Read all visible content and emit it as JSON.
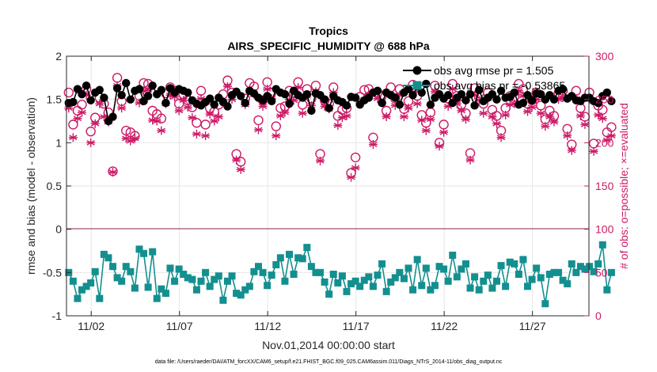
{
  "chart_data": {
    "type": "line",
    "title": "Tropics",
    "subtitle": "AIRS_SPECIFIC_HUMIDITY @ 688 hPa",
    "xlabel": "Nov.01,2014 00:00:00 start",
    "ylabel": "rmse and bias (model - observation)",
    "y2label": "# of obs: o=possible; ×=evaluated",
    "xlim": [
      0.6,
      30.2
    ],
    "ylim": [
      -1,
      2
    ],
    "y2lim": [
      0,
      300
    ],
    "x_ticks": [
      2,
      7,
      12,
      17,
      22,
      27
    ],
    "x_tick_labels": [
      "11/02",
      "11/07",
      "11/12",
      "11/17",
      "11/22",
      "11/27"
    ],
    "y_ticks": [
      -1,
      -0.5,
      0,
      0.5,
      1,
      1.5,
      2
    ],
    "y_tick_labels": [
      "-1",
      "-0.5",
      "0",
      "0.5",
      "1",
      "1.5",
      "2"
    ],
    "y2_ticks": [
      0,
      50,
      100,
      150,
      200,
      250,
      300
    ],
    "y2_tick_labels": [
      "0",
      "50",
      "100",
      "150",
      "200",
      "250",
      "300"
    ],
    "grid": true,
    "legend_location": "top-right",
    "legend": [
      "obs avg rmse pr = 1.505",
      "obs avg bias pr = -0.53865"
    ],
    "footnote": "data file: /Users/raeder/DAI/ATM_forcXX/CAM6_setup/f.e21.FHIST_BGC.f09_025.CAM6assim.011/Diags_NTrS_2014-11/obs_diag_output.nc",
    "time_step_days": 0.25,
    "series": [
      {
        "name": "obs avg rmse pr",
        "axis": "left",
        "color": "#000000",
        "marker": "filled-circle",
        "values": [
          1.46,
          1.47,
          1.62,
          1.56,
          1.66,
          1.49,
          1.58,
          1.61,
          1.52,
          1.25,
          1.3,
          1.63,
          1.55,
          1.69,
          1.5,
          1.6,
          1.62,
          1.48,
          1.54,
          1.66,
          1.56,
          1.61,
          1.46,
          1.63,
          1.58,
          1.62,
          1.6,
          1.58,
          1.49,
          1.45,
          1.43,
          1.47,
          1.51,
          1.44,
          1.52,
          1.47,
          1.42,
          1.55,
          1.59,
          1.54,
          1.46,
          1.6,
          1.57,
          1.52,
          1.49,
          1.54,
          1.48,
          1.62,
          1.58,
          1.56,
          1.45,
          1.6,
          1.55,
          1.52,
          1.56,
          1.37,
          1.57,
          1.55,
          1.5,
          1.4,
          1.54,
          1.49,
          1.47,
          1.43,
          1.53,
          1.52,
          1.44,
          1.49,
          1.52,
          1.58,
          1.6,
          1.46,
          1.58,
          1.55,
          1.52,
          1.44,
          1.58,
          1.62,
          1.55,
          1.65,
          1.58,
          1.68,
          1.44,
          1.52,
          1.56,
          1.51,
          1.55,
          1.46,
          1.52,
          1.56,
          1.49,
          1.56,
          1.43,
          1.61,
          1.48,
          1.52,
          1.56,
          1.5,
          1.6,
          1.52,
          1.53,
          1.58,
          1.44,
          1.46,
          1.55,
          1.49,
          1.57,
          1.56,
          1.5,
          1.55,
          1.5,
          1.6,
          1.62,
          1.51,
          1.54,
          1.49,
          1.48,
          1.52,
          1.52,
          1.48,
          1.46,
          1.54,
          1.58,
          1.48
        ]
      },
      {
        "name": "obs avg bias pr",
        "axis": "left",
        "color": "#148f8f",
        "marker": "filled-square",
        "values": [
          -0.5,
          -0.6,
          -0.8,
          -0.7,
          -0.66,
          -0.62,
          -0.49,
          -0.8,
          -0.29,
          -0.33,
          -0.43,
          -0.56,
          -0.6,
          -0.43,
          -0.49,
          -0.68,
          -0.23,
          -0.28,
          -0.67,
          -0.26,
          -0.8,
          -0.69,
          -0.74,
          -0.45,
          -0.6,
          -0.46,
          -0.52,
          -0.56,
          -0.58,
          -0.7,
          -0.6,
          -0.5,
          -0.66,
          -0.58,
          -0.54,
          -0.82,
          -0.6,
          -0.54,
          -0.74,
          -0.76,
          -0.7,
          -0.66,
          -0.49,
          -0.43,
          -0.5,
          -0.65,
          -0.53,
          -0.41,
          -0.33,
          -0.6,
          -0.29,
          -0.52,
          -0.33,
          -0.34,
          -0.21,
          -0.43,
          -0.5,
          -0.5,
          -0.61,
          -0.75,
          -0.52,
          -0.62,
          -0.54,
          -0.72,
          -0.63,
          -0.6,
          -0.66,
          -0.59,
          -0.55,
          -0.66,
          -0.53,
          -0.4,
          -0.72,
          -0.61,
          -0.56,
          -0.5,
          -0.57,
          -0.45,
          -0.7,
          -0.35,
          -0.65,
          -0.45,
          -0.7,
          -0.65,
          -0.43,
          -0.46,
          -0.6,
          -0.3,
          -0.55,
          -0.46,
          -0.4,
          -0.68,
          -0.55,
          -0.7,
          -0.6,
          -0.53,
          -0.68,
          -0.6,
          -0.42,
          -0.66,
          -0.38,
          -0.4,
          -0.52,
          -0.35,
          -0.66,
          -0.58,
          -0.45,
          -0.56,
          -0.86,
          -0.52,
          -0.5,
          -0.5,
          -0.59,
          -0.63,
          -0.4,
          -0.5,
          -0.43,
          -0.46,
          -0.43,
          -0.49,
          -0.4,
          -0.18,
          -0.7,
          -0.5
        ]
      },
      {
        "name": "# of obs possible",
        "axis": "right",
        "color": "#cc1a66",
        "marker": "open-circle",
        "values": [
          258,
          221,
          237,
          244,
          262,
          213,
          229,
          252,
          245,
          235,
          167,
          275,
          248,
          214,
          212,
          208,
          254,
          269,
          268,
          237,
          233,
          228,
          257,
          264,
          260,
          245,
          256,
          249,
          241,
          223,
          260,
          221,
          240,
          236,
          244,
          256,
          272,
          258,
          187,
          178,
          251,
          269,
          265,
          226,
          249,
          270,
          258,
          219,
          240,
          242,
          260,
          257,
          270,
          244,
          262,
          251,
          266,
          187,
          249,
          245,
          264,
          231,
          238,
          240,
          165,
          183,
          253,
          261,
          262,
          206,
          258,
          254,
          237,
          264,
          251,
          262,
          239,
          248,
          267,
          254,
          232,
          223,
          235,
          266,
          200,
          221,
          251,
          268,
          254,
          244,
          234,
          188,
          263,
          257,
          245,
          258,
          238,
          231,
          214,
          240,
          254,
          253,
          268,
          262,
          245,
          249,
          258,
          243,
          227,
          237,
          231,
          257,
          260,
          216,
          198,
          260,
          240,
          230,
          258,
          199,
          243,
          238,
          212,
          218
        ]
      },
      {
        "name": "# of obs evaluated",
        "axis": "right",
        "color": "#cc1a66",
        "marker": "asterisk",
        "values": [
          240,
          206,
          228,
          235,
          255,
          200,
          222,
          245,
          230,
          224,
          166,
          266,
          240,
          205,
          202,
          205,
          246,
          260,
          261,
          226,
          225,
          214,
          245,
          255,
          253,
          237,
          249,
          241,
          229,
          210,
          251,
          208,
          233,
          225,
          230,
          248,
          265,
          250,
          180,
          169,
          244,
          260,
          256,
          215,
          242,
          262,
          251,
          208,
          231,
          235,
          250,
          249,
          264,
          234,
          254,
          243,
          259,
          179,
          242,
          239,
          258,
          220,
          229,
          231,
          160,
          171,
          246,
          250,
          255,
          198,
          251,
          246,
          230,
          255,
          243,
          255,
          230,
          240,
          258,
          245,
          226,
          214,
          227,
          259,
          196,
          212,
          242,
          262,
          245,
          237,
          227,
          180,
          255,
          249,
          234,
          251,
          230,
          222,
          206,
          232,
          244,
          245,
          260,
          254,
          236,
          241,
          250,
          234,
          219,
          230,
          224,
          250,
          252,
          208,
          191,
          251,
          231,
          221,
          250,
          190,
          232,
          228,
          203,
          208
        ]
      }
    ]
  }
}
